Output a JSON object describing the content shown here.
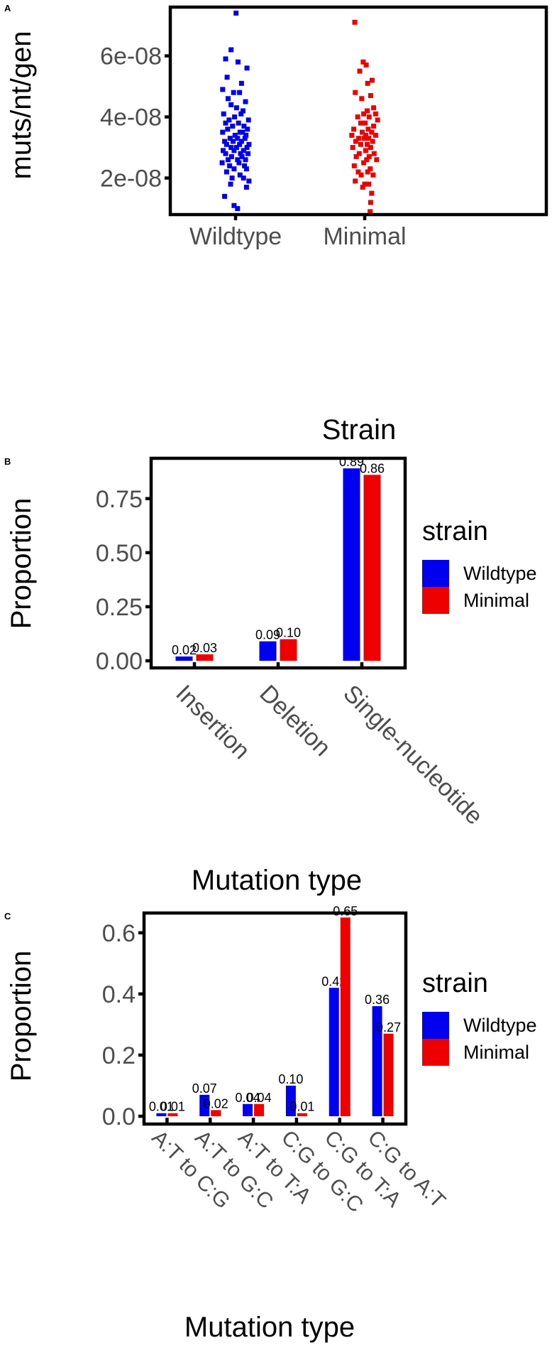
{
  "chart_data": [
    {
      "panel": "A",
      "type": "scatter",
      "ylabel": "muts/nt/gen",
      "categories": [
        "Wildtype",
        "Minimal"
      ],
      "ylim": [
        8.5e-09,
        7.55e-08
      ],
      "yticks": [
        2e-08,
        4e-08,
        6e-08
      ],
      "ytick_labels": [
        "2e-08",
        "4e-08",
        "6e-08"
      ],
      "colors": {
        "Wildtype": "#0000ee",
        "Minimal": "#ee0000"
      },
      "series": [
        {
          "category": "Wildtype",
          "values": [
            7.4e-08,
            6.2e-08,
            5.9e-08,
            5.8e-08,
            5.6e-08,
            5.3e-08,
            5.1e-08,
            4.9e-08,
            4.8e-08,
            4.8e-08,
            4.6e-08,
            4.5e-08,
            4.4e-08,
            4.3e-08,
            4.2e-08,
            4.1e-08,
            4.1e-08,
            4e-08,
            3.9e-08,
            3.9e-08,
            3.8e-08,
            3.8e-08,
            3.7e-08,
            3.7e-08,
            3.6e-08,
            3.6e-08,
            3.5e-08,
            3.5e-08,
            3.5e-08,
            3.4e-08,
            3.4e-08,
            3.3e-08,
            3.3e-08,
            3.3e-08,
            3.2e-08,
            3.2e-08,
            3.2e-08,
            3.1e-08,
            3.1e-08,
            3.1e-08,
            3e-08,
            3e-08,
            3e-08,
            2.9e-08,
            2.9e-08,
            2.9e-08,
            2.8e-08,
            2.8e-08,
            2.8e-08,
            2.7e-08,
            2.7e-08,
            2.6e-08,
            2.6e-08,
            2.6e-08,
            2.5e-08,
            2.5e-08,
            2.4e-08,
            2.4e-08,
            2.3e-08,
            2.3e-08,
            2.2e-08,
            2.1e-08,
            2e-08,
            2e-08,
            1.9e-08,
            1.8e-08,
            1.7e-08,
            1.4e-08,
            1.1e-08,
            1e-08
          ]
        },
        {
          "category": "Minimal",
          "values": [
            7.1e-08,
            5.8e-08,
            5.7e-08,
            5.5e-08,
            5.2e-08,
            5.1e-08,
            4.8e-08,
            4.7e-08,
            4.6e-08,
            4.3e-08,
            4.2e-08,
            4.1e-08,
            4.1e-08,
            4e-08,
            4e-08,
            3.9e-08,
            3.8e-08,
            3.8e-08,
            3.7e-08,
            3.6e-08,
            3.6e-08,
            3.5e-08,
            3.5e-08,
            3.4e-08,
            3.4e-08,
            3.4e-08,
            3.3e-08,
            3.3e-08,
            3.3e-08,
            3.2e-08,
            3.2e-08,
            3.1e-08,
            3.1e-08,
            3e-08,
            3e-08,
            2.9e-08,
            2.8e-08,
            2.8e-08,
            2.7e-08,
            2.7e-08,
            2.6e-08,
            2.6e-08,
            2.5e-08,
            2.4e-08,
            2.3e-08,
            2.2e-08,
            2.2e-08,
            2.1e-08,
            2.1e-08,
            1.9e-08,
            1.8e-08,
            1.8e-08,
            1.7e-08,
            1.5e-08,
            1.2e-08,
            9e-09
          ]
        }
      ],
      "xjitter": {
        "Wildtype": [
          0.01,
          -0.09,
          -0.2,
          0.05,
          0.23,
          -0.17,
          0.12,
          -0.26,
          0.08,
          -0.04,
          -0.15,
          0.2,
          -0.09,
          0.02,
          0.15,
          -0.24,
          0.11,
          -0.02,
          0.26,
          -0.13,
          0.06,
          -0.2,
          0.17,
          -0.06,
          0.24,
          -0.16,
          0.09,
          -0.26,
          0.14,
          -0.01,
          0.21,
          -0.11,
          0.04,
          0.19,
          -0.22,
          0.12,
          -0.05,
          0.27,
          -0.18,
          0.08,
          -0.09,
          0.23,
          0.02,
          -0.25,
          0.16,
          -0.03,
          0.1,
          -0.2,
          0.25,
          -0.08,
          0.13,
          -0.15,
          0.04,
          0.2,
          -0.27,
          0.07,
          -0.12,
          0.18,
          -0.03,
          0.22,
          -0.18,
          0.09,
          -0.07,
          0.16,
          0.27,
          -0.1,
          0.22,
          -0.22,
          -0.03,
          0.04
        ],
        "Minimal": [
          -0.2,
          -0.03,
          0.03,
          -0.1,
          0.15,
          0.06,
          -0.19,
          0.12,
          -0.06,
          0.18,
          0.05,
          -0.02,
          0.22,
          -0.14,
          0.09,
          0.26,
          -0.08,
          0.01,
          0.18,
          -0.22,
          0.07,
          -0.05,
          0.14,
          -0.26,
          0.02,
          0.22,
          -0.12,
          0.08,
          -0.01,
          0.16,
          -0.18,
          0.05,
          -0.08,
          0.12,
          -0.24,
          0.02,
          0.19,
          -0.11,
          0.09,
          -0.17,
          0.04,
          0.24,
          -0.02,
          -0.21,
          0.11,
          -0.13,
          0.06,
          -0.07,
          0.17,
          -0.19,
          0.0,
          0.08,
          -0.04,
          0.14,
          0.12,
          0.11
        ]
      },
      "frame": true
    },
    {
      "panel": "B",
      "type": "bar",
      "title": "Strain",
      "xlabel": "Mutation type",
      "ylabel": "Proportion",
      "categories": [
        "Insertion",
        "Deletion",
        "Single-nucleotide"
      ],
      "ylim": [
        0,
        0.93
      ],
      "yticks": [
        0,
        0.25,
        0.5,
        0.75
      ],
      "ytick_labels": [
        "0.00",
        "0.25",
        "0.50",
        "0.75"
      ],
      "series": [
        {
          "name": "Wildtype",
          "color": "#0000ee",
          "values": [
            0.02,
            0.09,
            0.89
          ],
          "labels": [
            "0.02",
            "0.09",
            "0.89"
          ]
        },
        {
          "name": "Minimal",
          "color": "#ee0000",
          "values": [
            0.03,
            0.1,
            0.86
          ],
          "labels": [
            "0.03",
            "0.10",
            "0.86"
          ]
        }
      ],
      "legend": {
        "title": "strain",
        "position": "right"
      }
    },
    {
      "panel": "C",
      "type": "bar",
      "xlabel": "Mutation type",
      "ylabel": "Proportion",
      "categories": [
        "A:T to C:G",
        "A:T to G:C",
        "A:T to T:A",
        "C:G to G:C",
        "C:G to T:A",
        "C:G to A:T"
      ],
      "ylim": [
        0,
        0.66
      ],
      "yticks": [
        0,
        0.2,
        0.4,
        0.6
      ],
      "ytick_labels": [
        "0.0",
        "0.2",
        "0.4",
        "0.6"
      ],
      "series": [
        {
          "name": "Wildtype",
          "color": "#0000ee",
          "values": [
            0.01,
            0.07,
            0.04,
            0.1,
            0.42,
            0.36
          ],
          "labels": [
            "0.01",
            "0.07",
            "0.04",
            "0.10",
            "0.42",
            "0.36"
          ]
        },
        {
          "name": "Minimal",
          "color": "#ee0000",
          "values": [
            0.01,
            0.02,
            0.04,
            0.01,
            0.65,
            0.27
          ],
          "labels": [
            "0.01",
            "0.02",
            "0.04",
            "0.01",
            "0.65",
            "0.27"
          ]
        }
      ],
      "legend": {
        "title": "strain",
        "position": "right"
      }
    }
  ]
}
